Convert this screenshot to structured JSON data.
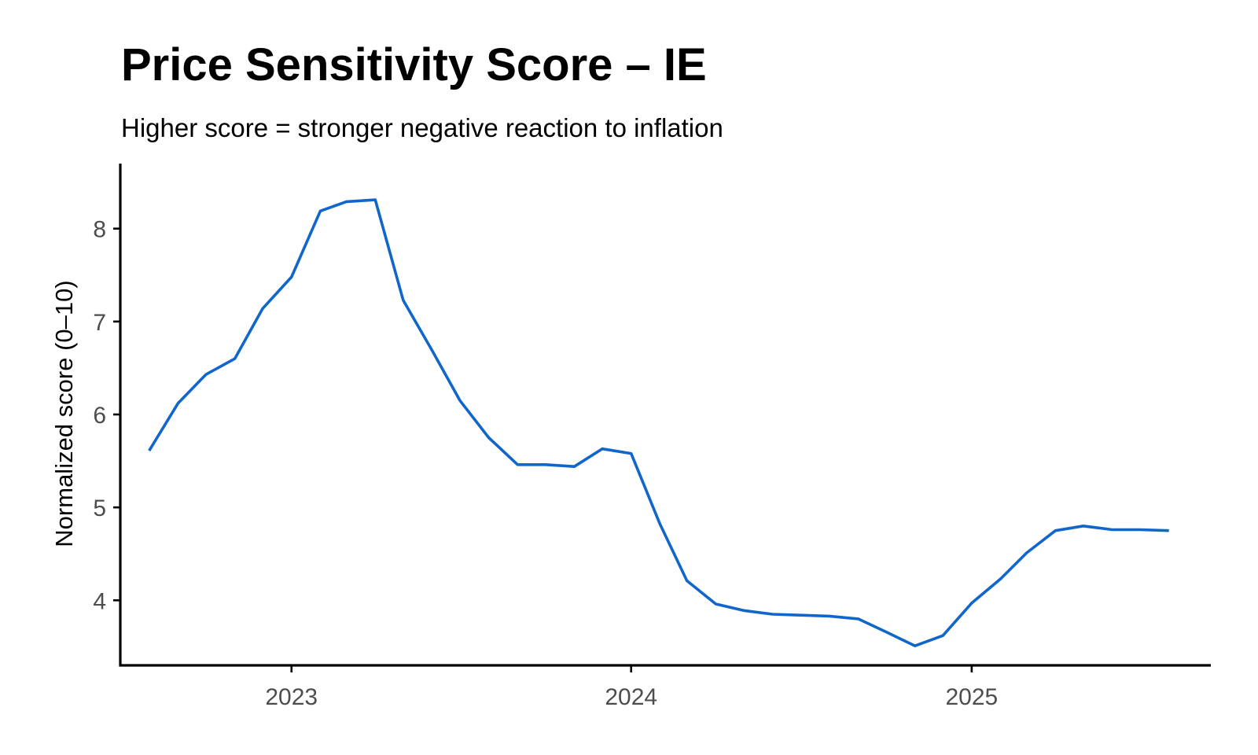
{
  "chart_data": {
    "type": "line",
    "title": "Price Sensitivity Score – IE",
    "subtitle": "Higher score = stronger negative reaction to inflation",
    "xlabel": "",
    "ylabel": "Normalized score (0–10)",
    "x_ticks": [
      "2023",
      "2024",
      "2025"
    ],
    "y_ticks": [
      4,
      5,
      6,
      7,
      8
    ],
    "xlim": [
      "2022-07-01",
      "2025-09-15"
    ],
    "ylim": [
      3.3,
      8.7
    ],
    "grid": false,
    "legend": "none",
    "line_color": "#1166CC",
    "series": [
      {
        "x": [
          "2022-08-01",
          "2022-09-01",
          "2022-10-01",
          "2022-11-01",
          "2022-12-01",
          "2023-01-01",
          "2023-02-01",
          "2023-03-01",
          "2023-04-01",
          "2023-05-01",
          "2023-06-01",
          "2023-07-01",
          "2023-08-01",
          "2023-09-01",
          "2023-10-01",
          "2023-11-01",
          "2023-12-01",
          "2024-01-01",
          "2024-02-01",
          "2024-03-01",
          "2024-04-01",
          "2024-05-01",
          "2024-06-01",
          "2024-07-01",
          "2024-08-01",
          "2024-09-01",
          "2024-10-01",
          "2024-11-01",
          "2024-12-01",
          "2025-01-01",
          "2025-02-01",
          "2025-03-01",
          "2025-04-01",
          "2025-05-01",
          "2025-06-01",
          "2025-07-01",
          "2025-08-01"
        ],
        "y": [
          5.61,
          6.12,
          6.43,
          6.6,
          7.14,
          7.48,
          8.19,
          8.29,
          8.31,
          7.23,
          6.69,
          6.15,
          5.75,
          5.46,
          5.46,
          5.44,
          5.63,
          5.58,
          4.82,
          4.21,
          3.96,
          3.89,
          3.85,
          3.84,
          3.83,
          3.8,
          3.66,
          3.51,
          3.62,
          3.97,
          4.23,
          4.51,
          4.75,
          4.8,
          4.76,
          4.76,
          4.75
        ]
      }
    ]
  }
}
